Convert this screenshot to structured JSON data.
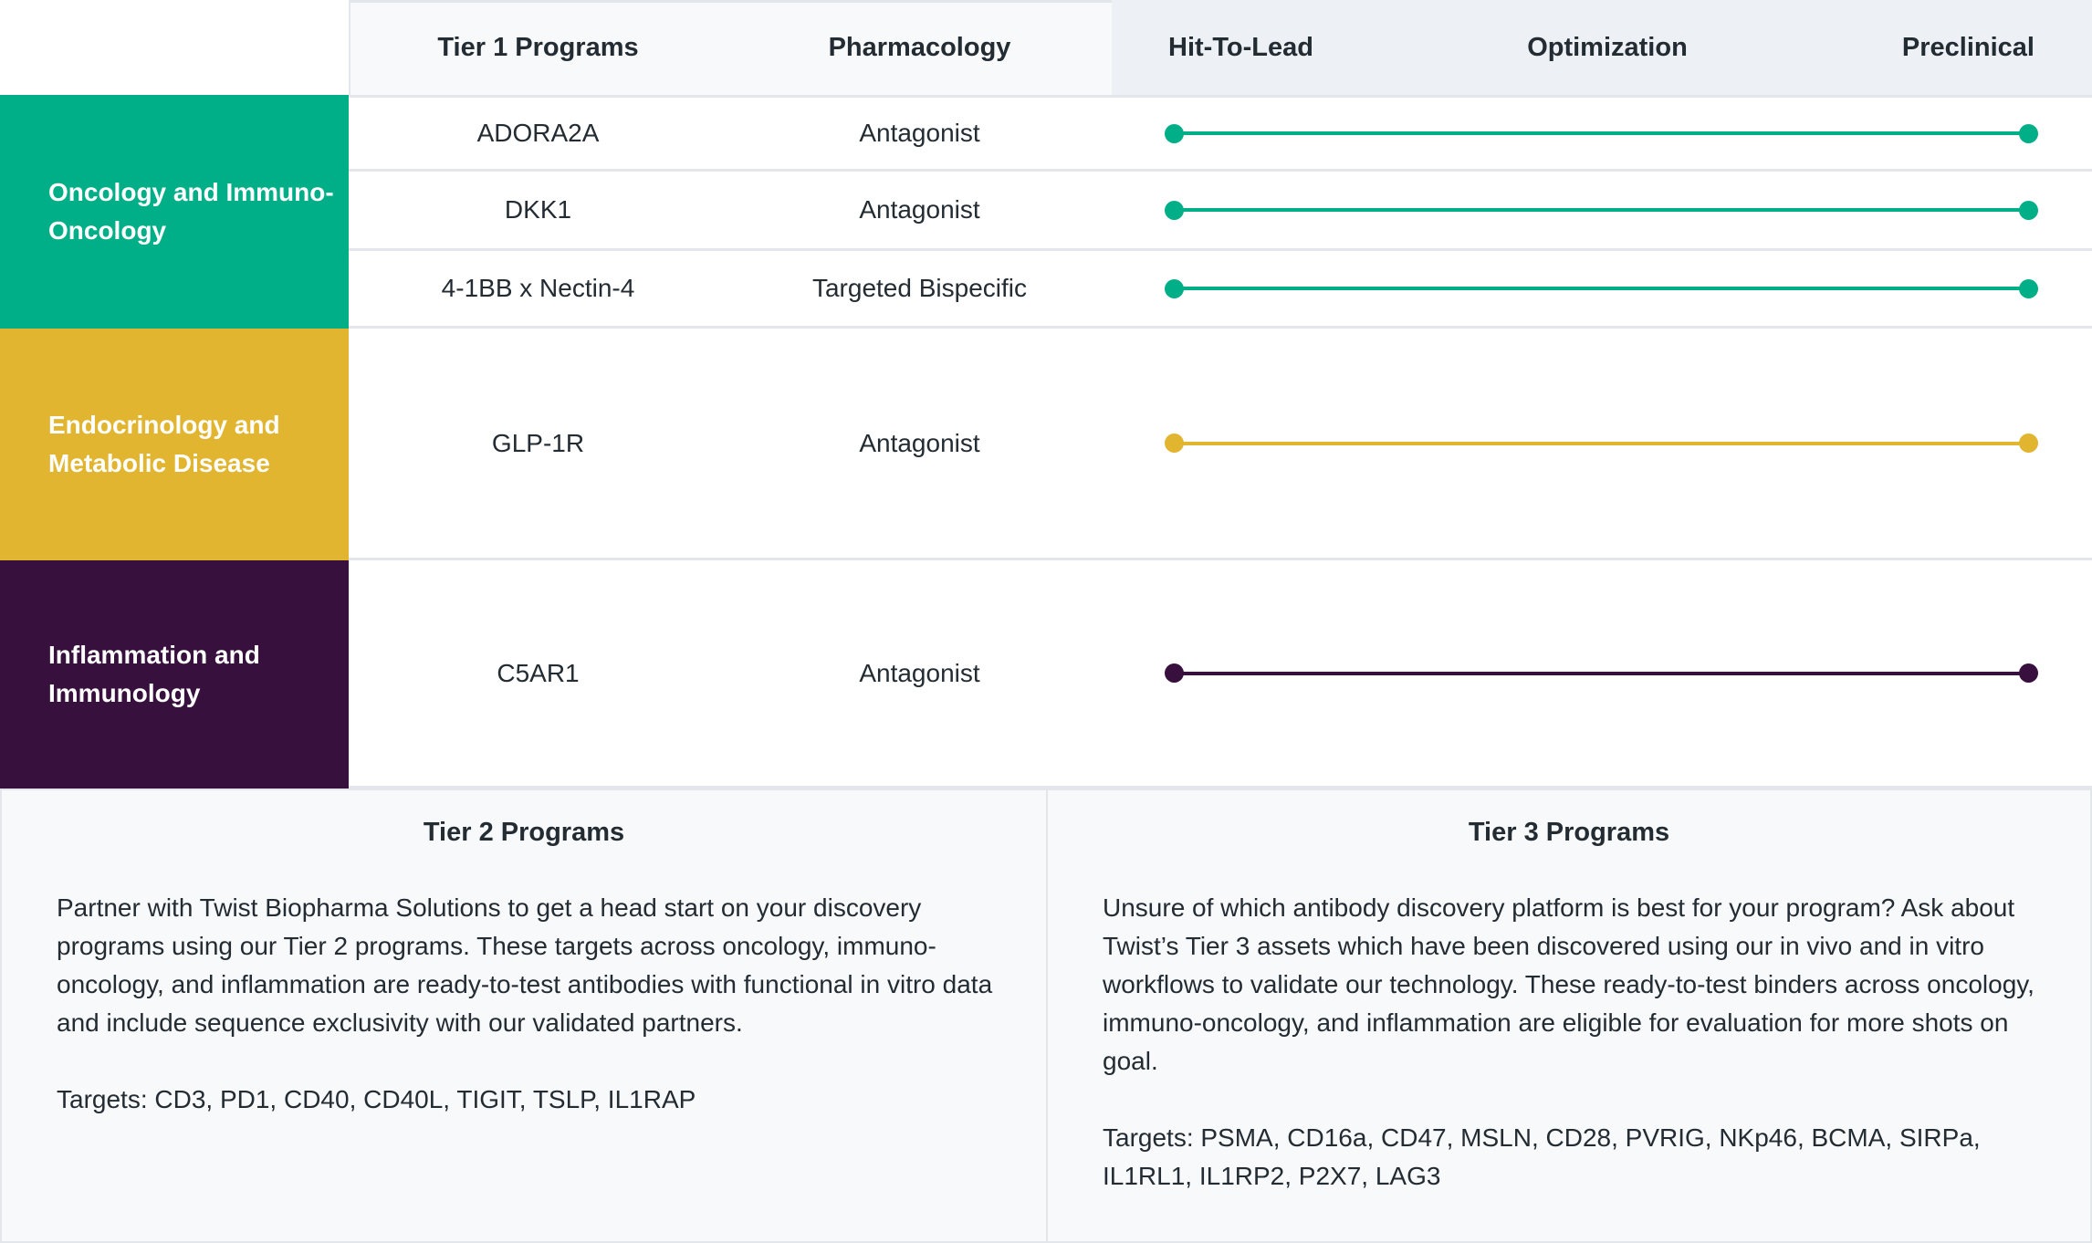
{
  "header": {
    "programs": "Tier 1 Programs",
    "pharmacology": "Pharmacology",
    "stages": [
      "Hit-To-Lead",
      "Optimization",
      "Preclinical"
    ]
  },
  "groups": [
    {
      "label": "Oncology and Immuno-Oncology",
      "color": "#00af87",
      "programs": [
        {
          "name": "ADORA2A",
          "pharmacology": "Antagonist",
          "stage_start": "Hit-To-Lead",
          "stage_end": "Preclinical"
        },
        {
          "name": "DKK1",
          "pharmacology": "Antagonist",
          "stage_start": "Hit-To-Lead",
          "stage_end": "Preclinical"
        },
        {
          "name": "4-1BB x Nectin-4",
          "pharmacology": "Targeted Bispecific",
          "stage_start": "Hit-To-Lead",
          "stage_end": "Preclinical"
        }
      ]
    },
    {
      "label": "Endocrinology and Metabolic Disease",
      "color": "#e1b52f",
      "programs": [
        {
          "name": "GLP-1R",
          "pharmacology": "Antagonist",
          "stage_start": "Hit-To-Lead",
          "stage_end": "Preclinical"
        }
      ]
    },
    {
      "label": "Inflammation and Immunology",
      "color": "#37103d",
      "programs": [
        {
          "name": "C5AR1",
          "pharmacology": "Antagonist",
          "stage_start": "Hit-To-Lead",
          "stage_end": "Preclinical"
        }
      ]
    }
  ],
  "tier2": {
    "title": "Tier 2 Programs",
    "body": "Partner with Twist Biopharma Solutions to get a head start on your discovery programs using our Tier 2 programs. These targets across oncology, immuno-oncology, and inflammation are ready-to-test antibodies with functional in vitro data and include sequence exclusivity with our validated partners.",
    "targets": "Targets: CD3, PD1, CD40, CD40L, TIGIT, TSLP, IL1RAP"
  },
  "tier3": {
    "title": "Tier 3 Programs",
    "body": "Unsure of which antibody discovery platform is best for your program? Ask about Twist’s Tier 3 assets which have been discovered using our in vivo and in vitro workflows to validate our technology. These ready-to-test binders across oncology, immuno-oncology, and inflammation are eligible for evaluation for more shots on goal.",
    "targets": "Targets: PSMA, CD16a, CD47, MSLN, CD28, PVRIG, NKp46, BCMA, SIRPa, IL1RL1, IL1RP2, P2X7, LAG3"
  }
}
